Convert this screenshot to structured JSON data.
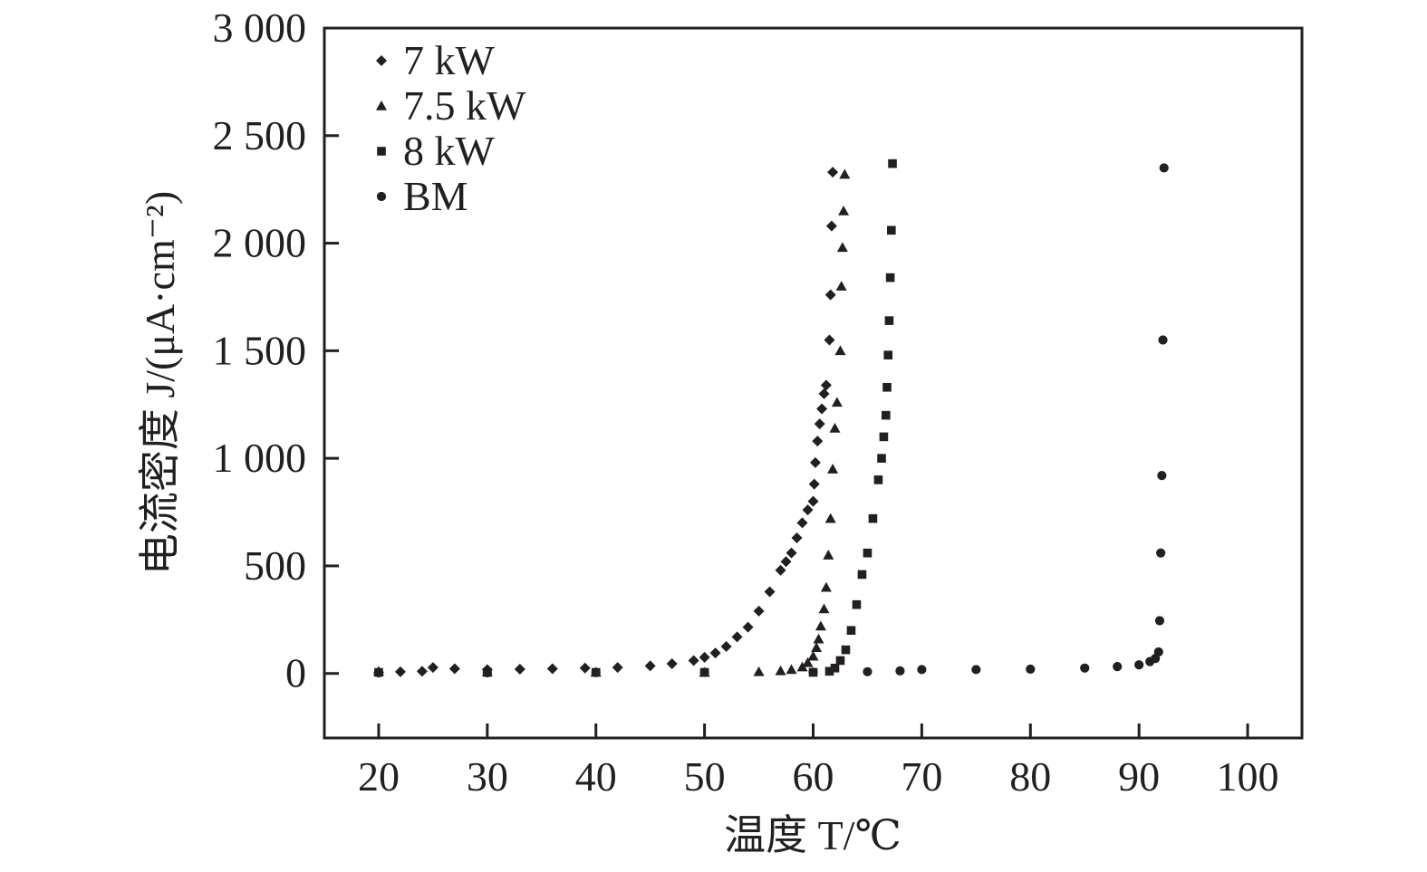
{
  "chart_data": {
    "type": "scatter",
    "xlabel": "温度 T/℃",
    "ylabel": "电流密度 J/(μA·cm⁻²)",
    "xlim": [
      15,
      105
    ],
    "ylim": [
      -300,
      3000
    ],
    "x_ticks": [
      20,
      30,
      40,
      50,
      60,
      70,
      80,
      90,
      100
    ],
    "x_tick_labels": [
      "20",
      "30",
      "40",
      "50",
      "60",
      "70",
      "80",
      "90",
      "100"
    ],
    "y_ticks": [
      0,
      500,
      1000,
      1500,
      2000,
      2500,
      3000
    ],
    "y_tick_labels": [
      "0",
      "500",
      "1 000",
      "1 500",
      "2 000",
      "2 500",
      "3 000"
    ],
    "grid": false,
    "legend_position": "top-left",
    "series": [
      {
        "name": "7 kW",
        "marker": "diamond",
        "points": [
          [
            20,
            5
          ],
          [
            22,
            8
          ],
          [
            24,
            10
          ],
          [
            25,
            28
          ],
          [
            27,
            22
          ],
          [
            30,
            18
          ],
          [
            33,
            20
          ],
          [
            36,
            22
          ],
          [
            39,
            25
          ],
          [
            42,
            28
          ],
          [
            45,
            35
          ],
          [
            47,
            45
          ],
          [
            49,
            60
          ],
          [
            50,
            75
          ],
          [
            51,
            95
          ],
          [
            52,
            125
          ],
          [
            53,
            170
          ],
          [
            54,
            215
          ],
          [
            55,
            290
          ],
          [
            56,
            380
          ],
          [
            57,
            480
          ],
          [
            57.5,
            520
          ],
          [
            58,
            560
          ],
          [
            58.5,
            630
          ],
          [
            59,
            700
          ],
          [
            59.5,
            760
          ],
          [
            60,
            800
          ],
          [
            60.1,
            880
          ],
          [
            60.2,
            980
          ],
          [
            60.4,
            1080
          ],
          [
            60.6,
            1160
          ],
          [
            60.8,
            1230
          ],
          [
            61,
            1300
          ],
          [
            61.2,
            1340
          ],
          [
            61.5,
            1550
          ],
          [
            61.6,
            1760
          ],
          [
            61.7,
            2080
          ],
          [
            61.8,
            2330
          ]
        ]
      },
      {
        "name": "7.5 kW",
        "marker": "triangle",
        "points": [
          [
            20,
            10
          ],
          [
            30,
            8
          ],
          [
            40,
            6
          ],
          [
            50,
            5
          ],
          [
            55,
            8
          ],
          [
            57,
            12
          ],
          [
            58,
            18
          ],
          [
            59,
            30
          ],
          [
            59.5,
            50
          ],
          [
            60,
            80
          ],
          [
            60.3,
            120
          ],
          [
            60.5,
            160
          ],
          [
            60.7,
            220
          ],
          [
            61,
            300
          ],
          [
            61.2,
            400
          ],
          [
            61.4,
            550
          ],
          [
            61.6,
            720
          ],
          [
            61.8,
            950
          ],
          [
            62,
            1140
          ],
          [
            62.2,
            1260
          ],
          [
            62.5,
            1500
          ],
          [
            62.6,
            1800
          ],
          [
            62.7,
            1980
          ],
          [
            62.8,
            2150
          ],
          [
            62.9,
            2320
          ]
        ]
      },
      {
        "name": "8 kW",
        "marker": "square",
        "points": [
          [
            20,
            5
          ],
          [
            30,
            5
          ],
          [
            40,
            5
          ],
          [
            50,
            5
          ],
          [
            60,
            5
          ],
          [
            61.5,
            10
          ],
          [
            62,
            25
          ],
          [
            62.5,
            60
          ],
          [
            63,
            110
          ],
          [
            63.5,
            200
          ],
          [
            64,
            320
          ],
          [
            64.5,
            460
          ],
          [
            65,
            560
          ],
          [
            65.5,
            720
          ],
          [
            66,
            900
          ],
          [
            66.3,
            1000
          ],
          [
            66.5,
            1100
          ],
          [
            66.7,
            1200
          ],
          [
            66.8,
            1330
          ],
          [
            66.9,
            1480
          ],
          [
            67,
            1640
          ],
          [
            67.1,
            1840
          ],
          [
            67.2,
            2060
          ],
          [
            67.3,
            2370
          ]
        ]
      },
      {
        "name": "BM",
        "marker": "circle",
        "points": [
          [
            20,
            3
          ],
          [
            30,
            3
          ],
          [
            40,
            4
          ],
          [
            50,
            5
          ],
          [
            60,
            6
          ],
          [
            65,
            8
          ],
          [
            68,
            12
          ],
          [
            70,
            18
          ],
          [
            75,
            18
          ],
          [
            80,
            20
          ],
          [
            85,
            25
          ],
          [
            88,
            32
          ],
          [
            90,
            40
          ],
          [
            91,
            55
          ],
          [
            91.5,
            70
          ],
          [
            91.8,
            100
          ],
          [
            91.9,
            245
          ],
          [
            92,
            560
          ],
          [
            92.1,
            920
          ],
          [
            92.2,
            1550
          ],
          [
            92.3,
            2350
          ]
        ]
      }
    ]
  }
}
